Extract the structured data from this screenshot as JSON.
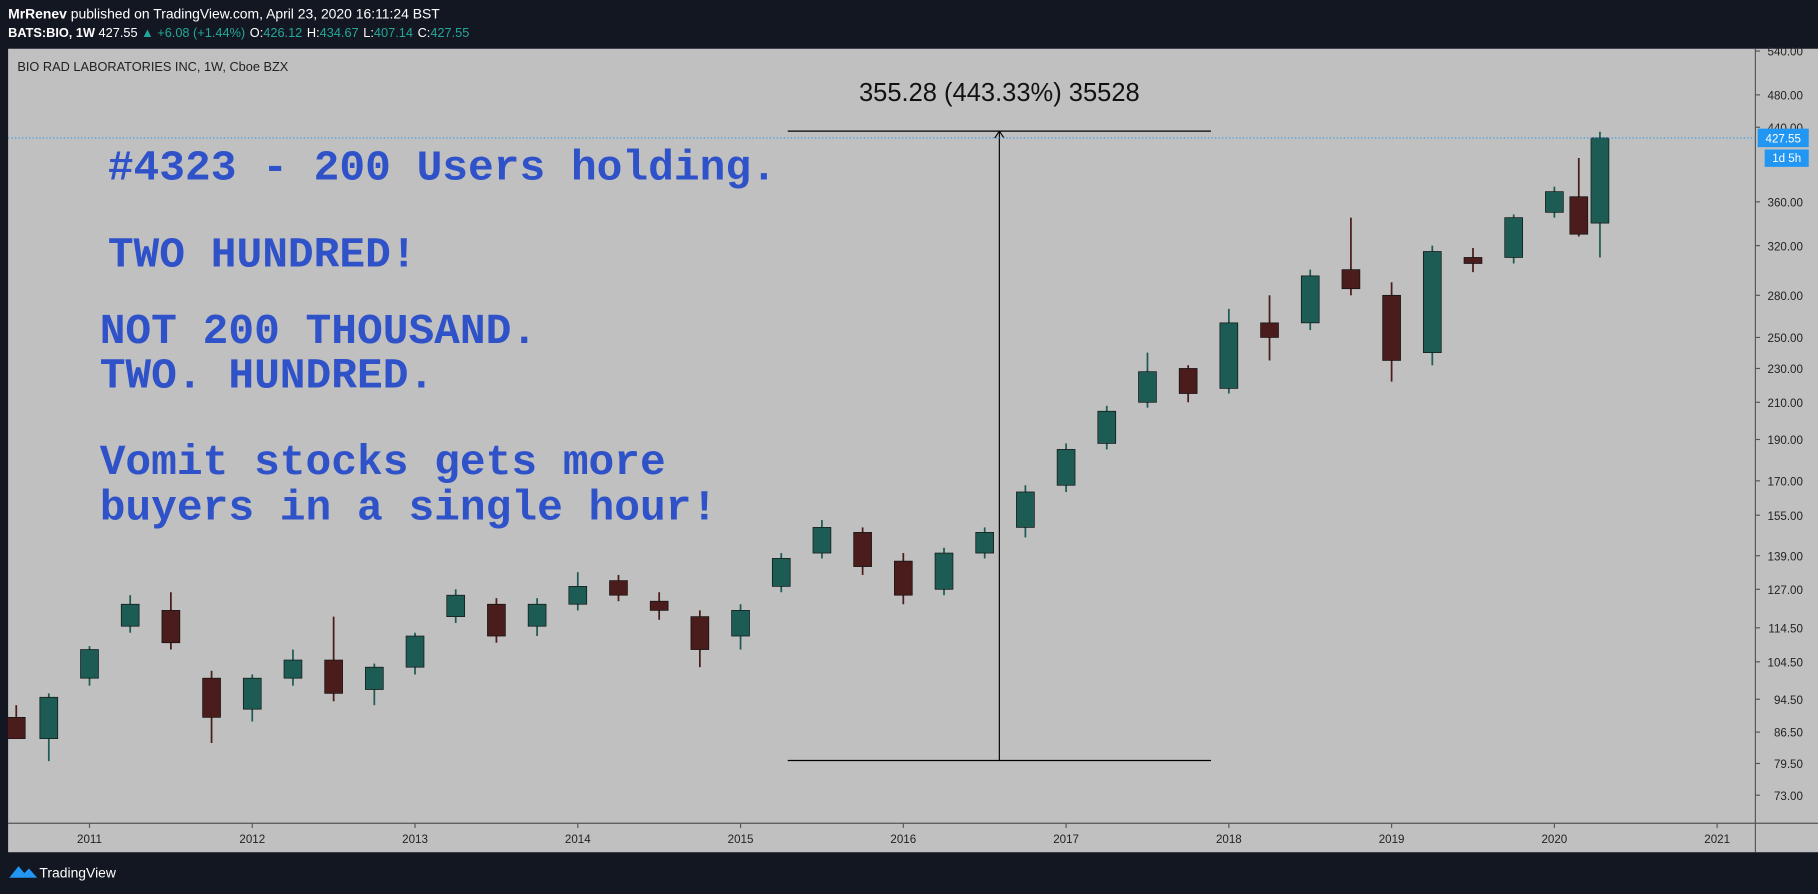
{
  "header": {
    "author": "MrRenev",
    "published": "published on TradingView.com, April 23, 2020 16:11:24 BST",
    "symbol": "BATS:BIO, 1W",
    "last": "427.55",
    "change": "▲ +6.08 (+1.44%)",
    "ohlc": [
      {
        "label": "O:",
        "value": "426.12"
      },
      {
        "label": "H:",
        "value": "434.67"
      },
      {
        "label": "L:",
        "value": "407.14"
      },
      {
        "label": "C:",
        "value": "427.55"
      }
    ]
  },
  "chart_data": {
    "type": "candlestick",
    "title": "BIO RAD LABORATORIES INC, 1W, Cboe BZX",
    "x": [
      2010.55,
      2010.75,
      2011.0,
      2011.25,
      2011.5,
      2011.75,
      2012.0,
      2012.25,
      2012.5,
      2012.75,
      2013.0,
      2013.25,
      2013.5,
      2013.75,
      2014.0,
      2014.25,
      2014.5,
      2014.75,
      2015.0,
      2015.25,
      2015.5,
      2015.75,
      2016.0,
      2016.25,
      2016.5,
      2016.75,
      2017.0,
      2017.25,
      2017.5,
      2017.75,
      2018.0,
      2018.25,
      2018.5,
      2018.75,
      2019.0,
      2019.25,
      2019.5,
      2019.75,
      2020.0,
      2020.15,
      2020.28
    ],
    "open": [
      90,
      85,
      100,
      115,
      120,
      100,
      92,
      100,
      105,
      97,
      103,
      118,
      122,
      115,
      122,
      130,
      123,
      118,
      112,
      128,
      140,
      148,
      137,
      127,
      140,
      150,
      168,
      188,
      210,
      230,
      218,
      260,
      260,
      300,
      280,
      240,
      310,
      310,
      350,
      365,
      340
    ],
    "high": [
      93,
      96,
      109,
      125,
      126,
      102,
      101,
      108,
      118,
      104,
      113,
      127,
      124,
      124,
      133,
      132,
      126,
      120,
      122,
      140,
      153,
      150,
      140,
      142,
      150,
      168,
      188,
      208,
      240,
      232,
      270,
      280,
      300,
      345,
      290,
      320,
      318,
      348,
      375,
      405,
      434.67
    ],
    "low": [
      86,
      80,
      98,
      113,
      108,
      84,
      89,
      98,
      94,
      93,
      101,
      116,
      110,
      112,
      120,
      123,
      117,
      103,
      108,
      126,
      138,
      132,
      122,
      125,
      138,
      146,
      165,
      185,
      207,
      210,
      215,
      235,
      255,
      280,
      222,
      232,
      298,
      305,
      345,
      328,
      310
    ],
    "close": [
      85,
      95,
      108,
      122,
      110,
      90,
      100,
      105,
      96,
      103,
      112,
      125,
      112,
      122,
      128,
      125,
      120,
      108,
      120,
      138,
      150,
      135,
      125,
      140,
      148,
      165,
      185,
      205,
      228,
      215,
      260,
      250,
      295,
      285,
      235,
      315,
      305,
      345,
      370,
      330,
      427.55
    ],
    "up_color": "#1d5c54",
    "down_color": "#4a1c1c",
    "xlim": [
      2010.5,
      2021.235
    ],
    "xticks": [
      2011,
      2012,
      2013,
      2014,
      2015,
      2016,
      2017,
      2018,
      2019,
      2020,
      2021
    ],
    "ylim": [
      67.7,
      543.4
    ],
    "log_scale": true,
    "grid": false,
    "yticks": [
      {
        "value": 73,
        "label": "73.00"
      },
      {
        "value": 79.5,
        "label": "79.50"
      },
      {
        "value": 86.5,
        "label": "86.50"
      },
      {
        "value": 94.5,
        "label": "94.50"
      },
      {
        "value": 104.5,
        "label": "104.50"
      },
      {
        "value": 114.5,
        "label": "114.50"
      },
      {
        "value": 127,
        "label": "127.00"
      },
      {
        "value": 139,
        "label": "139.00"
      },
      {
        "value": 155,
        "label": "155.00"
      },
      {
        "value": 170,
        "label": "170.00"
      },
      {
        "value": 190,
        "label": "190.00"
      },
      {
        "value": 210,
        "label": "210.00"
      },
      {
        "value": 230,
        "label": "230.00"
      },
      {
        "value": 250,
        "label": "250.00"
      },
      {
        "value": 280,
        "label": "280.00"
      },
      {
        "value": 320,
        "label": "320.00"
      },
      {
        "value": 360,
        "label": "360.00"
      },
      {
        "value": 440,
        "label": "440.00"
      },
      {
        "value": 480,
        "label": "480.00"
      },
      {
        "value": 540,
        "label": "540.00"
      }
    ],
    "last_price": 427.55,
    "countdown": "1d 5h",
    "measure": {
      "label": "355.28 (443.33%) 35528",
      "low": 80.14,
      "high": 435.42,
      "x0": 2015.29,
      "x1": 2017.89
    },
    "annotations": [
      "#4323 - 200 Users holding.",
      "TWO HUNDRED!",
      "NOT 200 THOUSAND.",
      "TWO. HUNDRED.",
      "Vomit stocks gets more",
      "buyers in a single hour!"
    ]
  },
  "footer": {
    "brand": "TradingView"
  }
}
